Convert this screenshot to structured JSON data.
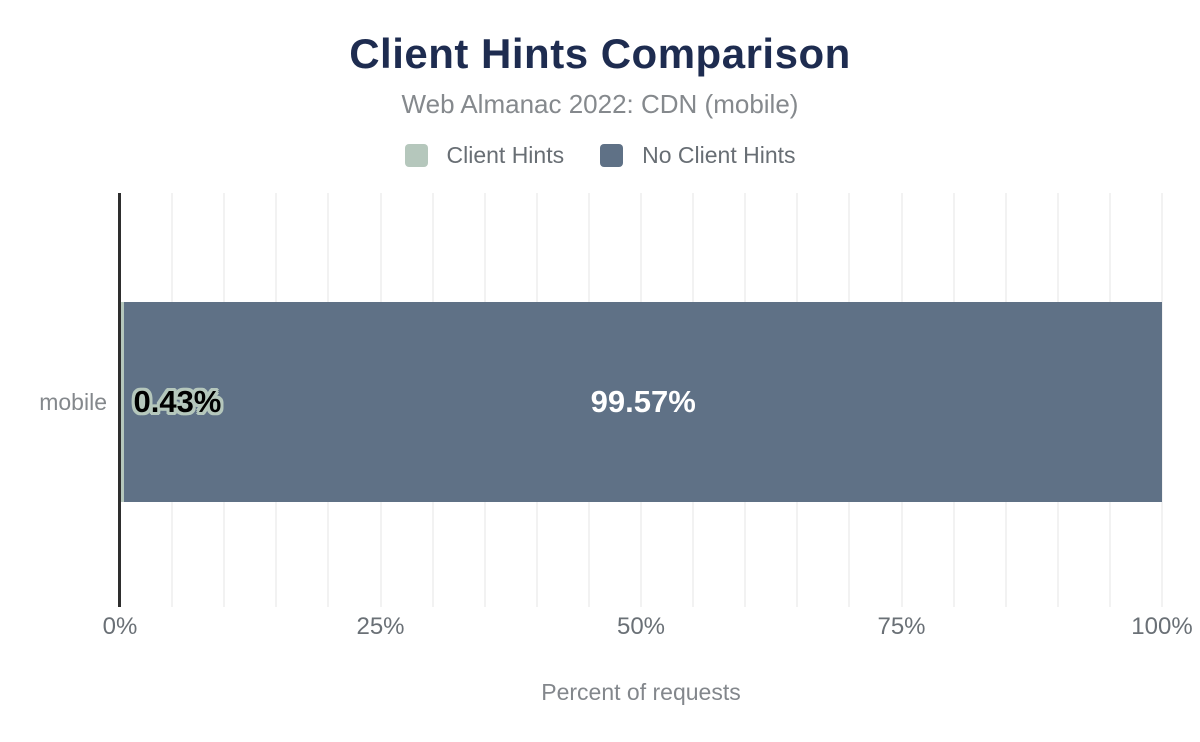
{
  "chart_data": {
    "type": "bar",
    "orientation": "horizontal",
    "stacked": true,
    "title": "Client Hints Comparison",
    "subtitle": "Web Almanac 2022: CDN (mobile)",
    "xlabel": "Percent of requests",
    "categories": [
      "mobile"
    ],
    "series": [
      {
        "name": "Client Hints",
        "color": "#b5c7bc",
        "values": [
          0.43
        ],
        "labels": [
          "0.43%"
        ]
      },
      {
        "name": "No Client Hints",
        "color": "#5f7186",
        "values": [
          99.57
        ],
        "labels": [
          "99.57%"
        ]
      }
    ],
    "xlim": [
      0,
      100
    ],
    "xticks": [
      0,
      25,
      50,
      75,
      100
    ],
    "xtick_labels": [
      "0%",
      "25%",
      "50%",
      "75%",
      "100%"
    ],
    "minor_grid_step_percent": 5,
    "grid": true,
    "legend_position": "top",
    "title_color": "#1e2c50"
  }
}
